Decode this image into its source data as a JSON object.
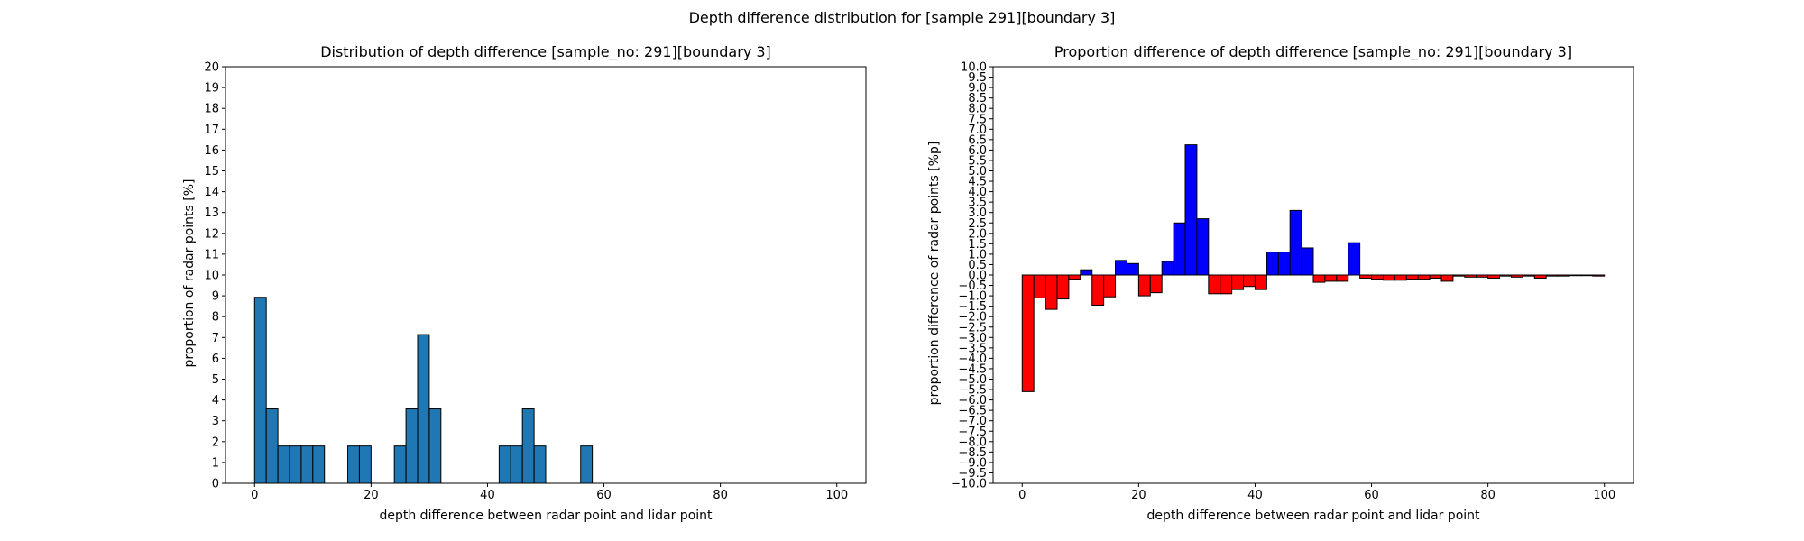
{
  "figure": {
    "suptitle": "Depth difference distribution for [sample 291][boundary 3]"
  },
  "chart_data": [
    {
      "type": "bar",
      "title": "Distribution of depth difference [sample_no: 291][boundary 3]",
      "xlabel": "depth difference between radar point and lidar point",
      "ylabel": "proportion of radar points [%]",
      "xlim": [
        -5,
        105
      ],
      "ylim": [
        0,
        20
      ],
      "xticks": [
        0,
        20,
        40,
        60,
        80,
        100
      ],
      "yticks": [
        0,
        1,
        2,
        3,
        4,
        5,
        6,
        7,
        8,
        9,
        10,
        11,
        12,
        13,
        14,
        15,
        16,
        17,
        18,
        19,
        20
      ],
      "bin_width": 2,
      "bar_color": "#1f77b4",
      "edge_color": "#000000",
      "grid": false,
      "bins": [
        {
          "x": 0,
          "value": 8.93
        },
        {
          "x": 2,
          "value": 3.57
        },
        {
          "x": 4,
          "value": 1.79
        },
        {
          "x": 6,
          "value": 1.79
        },
        {
          "x": 8,
          "value": 1.79
        },
        {
          "x": 10,
          "value": 1.79
        },
        {
          "x": 16,
          "value": 1.79
        },
        {
          "x": 18,
          "value": 1.79
        },
        {
          "x": 24,
          "value": 1.79
        },
        {
          "x": 26,
          "value": 3.57
        },
        {
          "x": 28,
          "value": 7.14
        },
        {
          "x": 30,
          "value": 3.57
        },
        {
          "x": 42,
          "value": 1.79
        },
        {
          "x": 44,
          "value": 1.79
        },
        {
          "x": 46,
          "value": 3.57
        },
        {
          "x": 48,
          "value": 1.79
        },
        {
          "x": 56,
          "value": 1.79
        }
      ]
    },
    {
      "type": "bar",
      "title": "Proportion difference of depth difference [sample_no: 291][boundary 3]",
      "xlabel": "depth difference between radar point and lidar point",
      "ylabel": "proportion difference of radar points [%p]",
      "xlim": [
        -5,
        105
      ],
      "ylim": [
        -10,
        10
      ],
      "xticks": [
        0,
        20,
        40,
        60,
        80,
        100
      ],
      "yticks": [
        10.0,
        9.5,
        9.0,
        8.5,
        8.0,
        7.5,
        7.0,
        6.5,
        6.0,
        5.5,
        5.0,
        4.5,
        4.0,
        3.5,
        3.0,
        2.5,
        2.0,
        1.5,
        1.0,
        0.5,
        0.0,
        -0.5,
        -1.0,
        -1.5,
        -2.0,
        -2.5,
        -3.0,
        -3.5,
        -4.0,
        -4.5,
        -5.0,
        -5.5,
        -6.0,
        -6.5,
        -7.0,
        -7.5,
        -8.0,
        -8.5,
        -9.0,
        -9.5,
        -10.0
      ],
      "bin_width": 2,
      "positive_color": "#0000ff",
      "negative_color": "#ff0000",
      "edge_color": "#000000",
      "grid": false,
      "bins": [
        {
          "x": 0,
          "value": -5.6
        },
        {
          "x": 2,
          "value": -1.1
        },
        {
          "x": 4,
          "value": -1.65
        },
        {
          "x": 6,
          "value": -1.15
        },
        {
          "x": 8,
          "value": -0.2
        },
        {
          "x": 10,
          "value": 0.25
        },
        {
          "x": 12,
          "value": -1.45
        },
        {
          "x": 14,
          "value": -1.05
        },
        {
          "x": 16,
          "value": 0.7
        },
        {
          "x": 18,
          "value": 0.55
        },
        {
          "x": 20,
          "value": -1.0
        },
        {
          "x": 22,
          "value": -0.85
        },
        {
          "x": 24,
          "value": 0.65
        },
        {
          "x": 26,
          "value": 2.5
        },
        {
          "x": 28,
          "value": 6.25
        },
        {
          "x": 30,
          "value": 2.7
        },
        {
          "x": 32,
          "value": -0.9
        },
        {
          "x": 34,
          "value": -0.9
        },
        {
          "x": 36,
          "value": -0.7
        },
        {
          "x": 38,
          "value": -0.55
        },
        {
          "x": 40,
          "value": -0.7
        },
        {
          "x": 42,
          "value": 1.1
        },
        {
          "x": 44,
          "value": 1.1
        },
        {
          "x": 46,
          "value": 3.1
        },
        {
          "x": 48,
          "value": 1.3
        },
        {
          "x": 50,
          "value": -0.35
        },
        {
          "x": 52,
          "value": -0.3
        },
        {
          "x": 54,
          "value": -0.3
        },
        {
          "x": 56,
          "value": 1.55
        },
        {
          "x": 58,
          "value": -0.15
        },
        {
          "x": 60,
          "value": -0.2
        },
        {
          "x": 62,
          "value": -0.25
        },
        {
          "x": 64,
          "value": -0.25
        },
        {
          "x": 66,
          "value": -0.2
        },
        {
          "x": 68,
          "value": -0.2
        },
        {
          "x": 70,
          "value": -0.15
        },
        {
          "x": 72,
          "value": -0.3
        },
        {
          "x": 74,
          "value": -0.05
        },
        {
          "x": 76,
          "value": -0.1
        },
        {
          "x": 78,
          "value": -0.1
        },
        {
          "x": 80,
          "value": -0.15
        },
        {
          "x": 82,
          "value": -0.05
        },
        {
          "x": 84,
          "value": -0.1
        },
        {
          "x": 86,
          "value": -0.05
        },
        {
          "x": 88,
          "value": -0.15
        },
        {
          "x": 90,
          "value": -0.05
        },
        {
          "x": 92,
          "value": -0.05
        },
        {
          "x": 94,
          "value": -0.03
        },
        {
          "x": 96,
          "value": -0.03
        },
        {
          "x": 98,
          "value": -0.05
        }
      ]
    }
  ]
}
